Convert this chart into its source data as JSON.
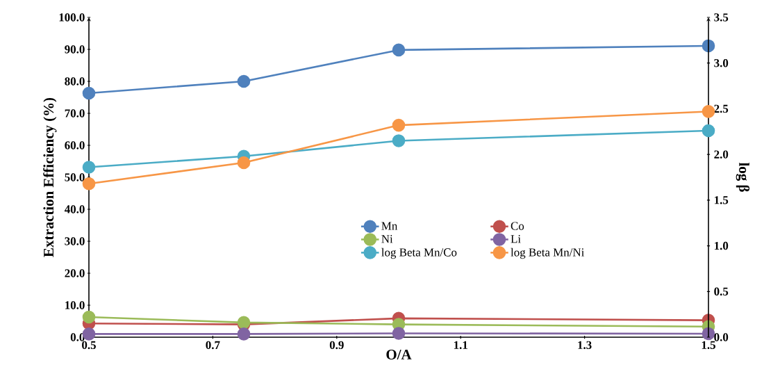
{
  "chart_data": {
    "type": "line",
    "xlabel": "O/A",
    "ylabel": "Extraction Efficiency (%)",
    "y2label": "log β",
    "x": [
      0.5,
      0.75,
      1.0,
      1.5
    ],
    "series": [
      {
        "name": "Mn",
        "color": "#4f81bd",
        "values": [
          76.3,
          80.0,
          89.8,
          91.1
        ]
      },
      {
        "name": "Co",
        "color": "#c0504d",
        "values": [
          4.3,
          4.0,
          5.9,
          5.3
        ]
      },
      {
        "name": "Ni",
        "color": "#9bbb59",
        "values": [
          6.3,
          4.6,
          4.0,
          3.3
        ]
      },
      {
        "name": "Li",
        "color": "#8064a2",
        "values": [
          1.0,
          1.0,
          1.2,
          1.1
        ]
      },
      {
        "name": "log Beta Mn/Co",
        "color": "#4bacc6",
        "axis": "y2",
        "values": [
          1.86,
          1.98,
          2.15,
          2.26
        ]
      },
      {
        "name": "log Beta Mn/Ni",
        "color": "#f79646",
        "axis": "y2",
        "values": [
          1.68,
          1.91,
          2.32,
          2.47
        ]
      }
    ],
    "xlim": [
      0.5,
      1.5
    ],
    "xticks": [
      0.5,
      0.7,
      0.9,
      1.1,
      1.3,
      1.5
    ],
    "ylim": [
      0,
      100
    ],
    "yticks": [
      {
        "value": 0,
        "label": "0.0"
      },
      {
        "value": 10,
        "label": "10.0"
      },
      {
        "value": 20,
        "label": "20.0"
      },
      {
        "value": 30,
        "label": "30.0"
      },
      {
        "value": 40,
        "label": "40.0"
      },
      {
        "value": 50,
        "label": "50.0"
      },
      {
        "value": 60,
        "label": "60.0"
      },
      {
        "value": 70,
        "label": "70.0"
      },
      {
        "value": 80,
        "label": "80.0"
      },
      {
        "value": 90,
        "label": "90.0"
      },
      {
        "value": 100,
        "label": "100.0"
      }
    ],
    "y2lim": [
      0,
      3.5
    ],
    "y2ticks": [
      {
        "value": 0,
        "label": "0.0"
      },
      {
        "value": 0.5,
        "label": "0.5"
      },
      {
        "value": 1,
        "label": "1.0"
      },
      {
        "value": 1.5,
        "label": "1.5"
      },
      {
        "value": 2,
        "label": "2.0"
      },
      {
        "value": 2.5,
        "label": "2.5"
      },
      {
        "value": 3,
        "label": "3.0"
      },
      {
        "value": 3.5,
        "label": "3.5"
      }
    ],
    "legend": "center",
    "marker": "circle",
    "line_style": "solid"
  }
}
